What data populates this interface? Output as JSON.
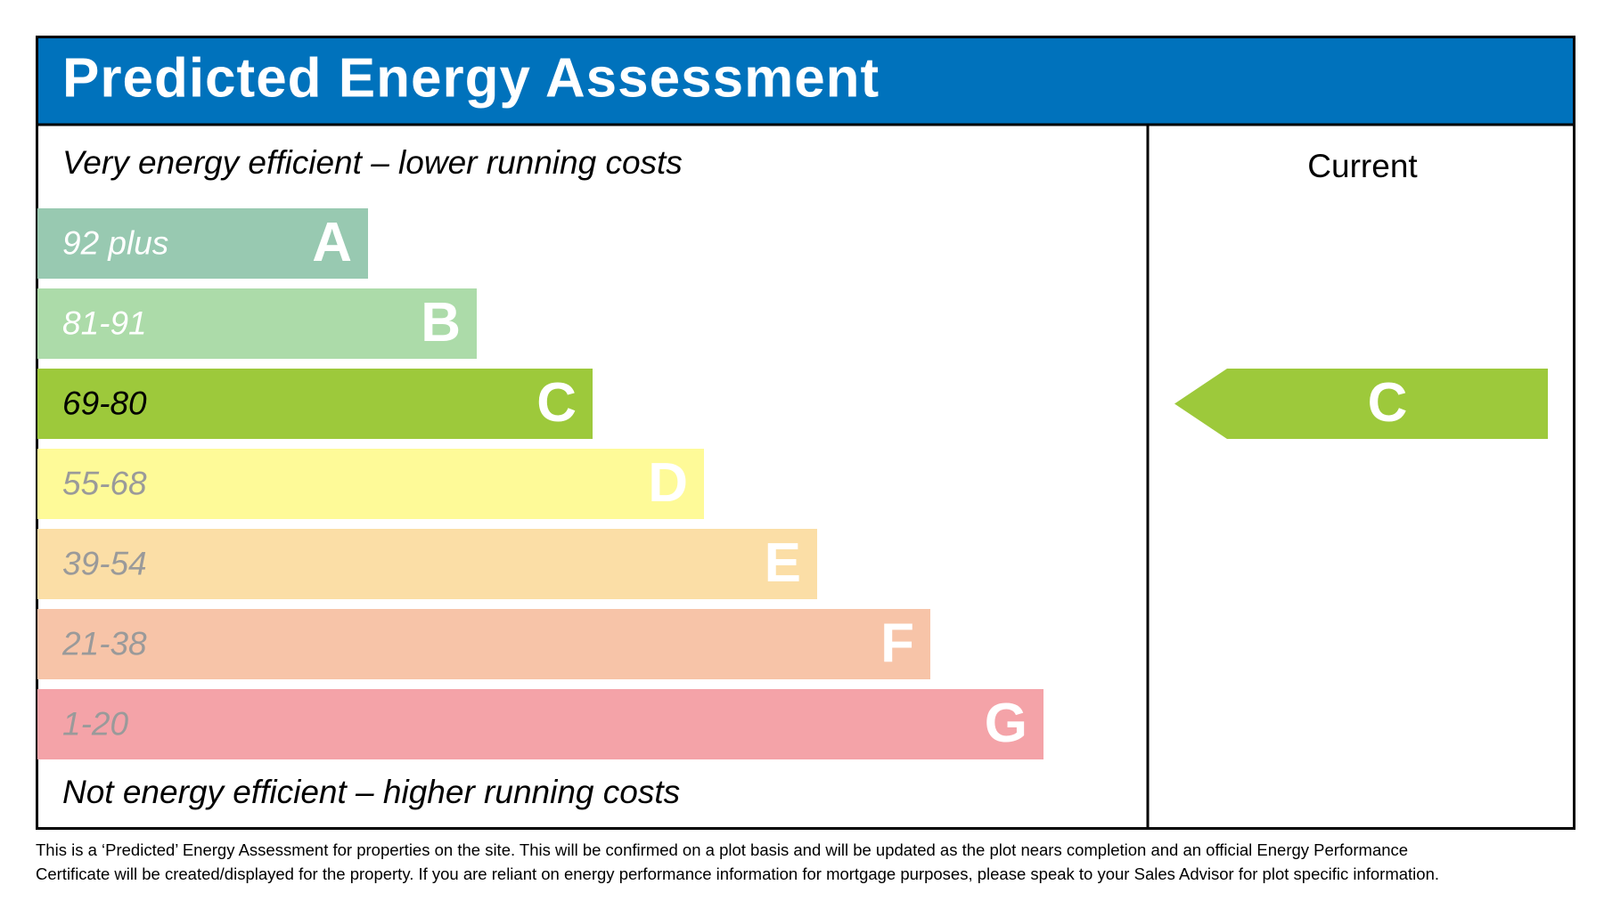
{
  "header": {
    "title": "Predicted Energy Assessment"
  },
  "scale": {
    "top_label": "Very energy efficient – lower running costs",
    "bottom_label": "Not energy efficient – higher running costs",
    "bands": [
      {
        "range": "92 plus",
        "letter": "A",
        "color": "#98c9b1",
        "text_color": "#ffffff"
      },
      {
        "range": "81-91",
        "letter": "B",
        "color": "#acdba9",
        "text_color": "#ffffff"
      },
      {
        "range": "69-80",
        "letter": "C",
        "color": "#9dc93b",
        "text_color": "#000000"
      },
      {
        "range": "55-68",
        "letter": "D",
        "color": "#fefa98",
        "text_color": "#9a9a9a"
      },
      {
        "range": "39-54",
        "letter": "E",
        "color": "#fbdea6",
        "text_color": "#9a9a9a"
      },
      {
        "range": "21-38",
        "letter": "F",
        "color": "#f7c4a8",
        "text_color": "#9a9a9a"
      },
      {
        "range": "1-20",
        "letter": "G",
        "color": "#f4a3a8",
        "text_color": "#9a9a9a"
      }
    ]
  },
  "current": {
    "header": "Current",
    "rating": "C"
  },
  "footnote": [
    "This is a ‘Predicted’ Energy Assessment for properties on the site. This will be confirmed on a plot basis and will be updated as the plot nears completion and an official Energy Performance",
    "Certificate will be created/displayed for the property. If you are reliant on energy performance information for mortgage purposes, please speak to your Sales Advisor for plot specific information."
  ]
}
